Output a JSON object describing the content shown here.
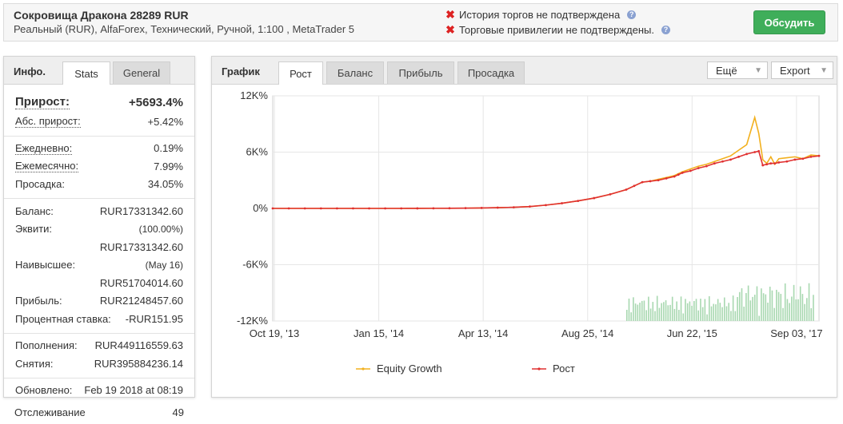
{
  "header": {
    "title": "Сокровища Дракона 28289 RUR",
    "subtitle": "Реальный (RUR), AlfaForex, Технический, Ручной, 1:100 , MetaTrader 5",
    "warnings": [
      "История торгов не подтверждена",
      "Торговые привилегии не подтверждены."
    ],
    "discuss_label": "Обсудить"
  },
  "info": {
    "title": "Инфо.",
    "tabs": [
      "Stats",
      "General"
    ],
    "gain_label": "Прирост:",
    "gain_value": "+5693.4%",
    "abs_gain_label": "Абс. прирост:",
    "abs_gain_value": "+5.42%",
    "daily_label": "Ежедневно:",
    "daily_value": "0.19%",
    "monthly_label": "Ежемесячно:",
    "monthly_value": "7.99%",
    "drawdown_label": "Просадка:",
    "drawdown_value": "34.05%",
    "balance_label": "Баланс:",
    "balance_value": "RUR17331342.60",
    "equity_label": "Эквити:",
    "equity_pct": "(100.00%)",
    "equity_value": "RUR17331342.60",
    "highest_label": "Наивысшее:",
    "highest_date": "(May 16)",
    "highest_value": "RUR51704014.60",
    "profit_label": "Прибыль:",
    "profit_value": "RUR21248457.60",
    "interest_label": "Процентная ставка:",
    "interest_value": "-RUR151.95",
    "deposits_label": "Пополнения:",
    "deposits_value": "RUR449116559.63",
    "withdrawals_label": "Снятия:",
    "withdrawals_value": "RUR395884236.14",
    "updated_label": "Обновлено:",
    "updated_value": "Feb 19 2018 at 08:19",
    "tracking_label": "Отслеживание",
    "tracking_value": "49"
  },
  "chart_panel": {
    "title": "График",
    "tabs": [
      "Рост",
      "Баланс",
      "Прибыль",
      "Просадка"
    ],
    "more_label": "Ещё",
    "export_label": "Export"
  },
  "colors": {
    "growth": "#e03030",
    "equity": "#f2b01e",
    "bars": "#a8d8b0",
    "accent_green": "#3fae5a"
  },
  "chart_data": {
    "type": "line",
    "ylim": [
      -12000,
      12000
    ],
    "yticks": [
      12000,
      6000,
      0,
      -6000,
      -12000
    ],
    "ytick_labels": [
      "12K%",
      "6K%",
      "0%",
      "-6K%",
      "-12K%"
    ],
    "xtick_labels": [
      "Oct 19, '13",
      "Jan 15, '14",
      "Apr 13, '14",
      "Aug 25, '14",
      "Jun 22, '15",
      "Sep 03, '17"
    ],
    "x": [
      0,
      20,
      40,
      60,
      80,
      100,
      120,
      140,
      160,
      180,
      200,
      220,
      240,
      260,
      280,
      300,
      320,
      340,
      360,
      380,
      400,
      420,
      440,
      450,
      460,
      470,
      480,
      490,
      500,
      505,
      510,
      520,
      530,
      540,
      550,
      560,
      570,
      580,
      590,
      600,
      605,
      610,
      615,
      620,
      625,
      630,
      640,
      650,
      660,
      670,
      680
    ],
    "series": [
      {
        "name": "Equity Growth",
        "values": [
          0,
          0,
          0,
          0,
          0,
          0,
          0,
          0,
          0,
          5,
          10,
          20,
          30,
          50,
          80,
          120,
          200,
          350,
          550,
          800,
          1100,
          1500,
          2000,
          2400,
          2800,
          2900,
          3100,
          3300,
          3500,
          3700,
          3900,
          4200,
          4500,
          4700,
          5000,
          5300,
          5600,
          6200,
          6800,
          9700,
          8000,
          5200,
          4800,
          5500,
          4700,
          5300,
          5400,
          5500,
          5300,
          5700,
          5600
        ]
      },
      {
        "name": "Рост",
        "values": [
          0,
          0,
          0,
          0,
          0,
          0,
          0,
          0,
          0,
          5,
          10,
          20,
          30,
          50,
          80,
          120,
          200,
          350,
          550,
          800,
          1100,
          1500,
          2000,
          2400,
          2800,
          2900,
          3000,
          3200,
          3400,
          3600,
          3800,
          4000,
          4300,
          4500,
          4800,
          5000,
          5200,
          5500,
          5800,
          6000,
          6100,
          4600,
          4700,
          4800,
          4800,
          4900,
          5000,
          5200,
          5300,
          5500,
          5600
        ]
      }
    ],
    "legend": "bottom-center"
  }
}
